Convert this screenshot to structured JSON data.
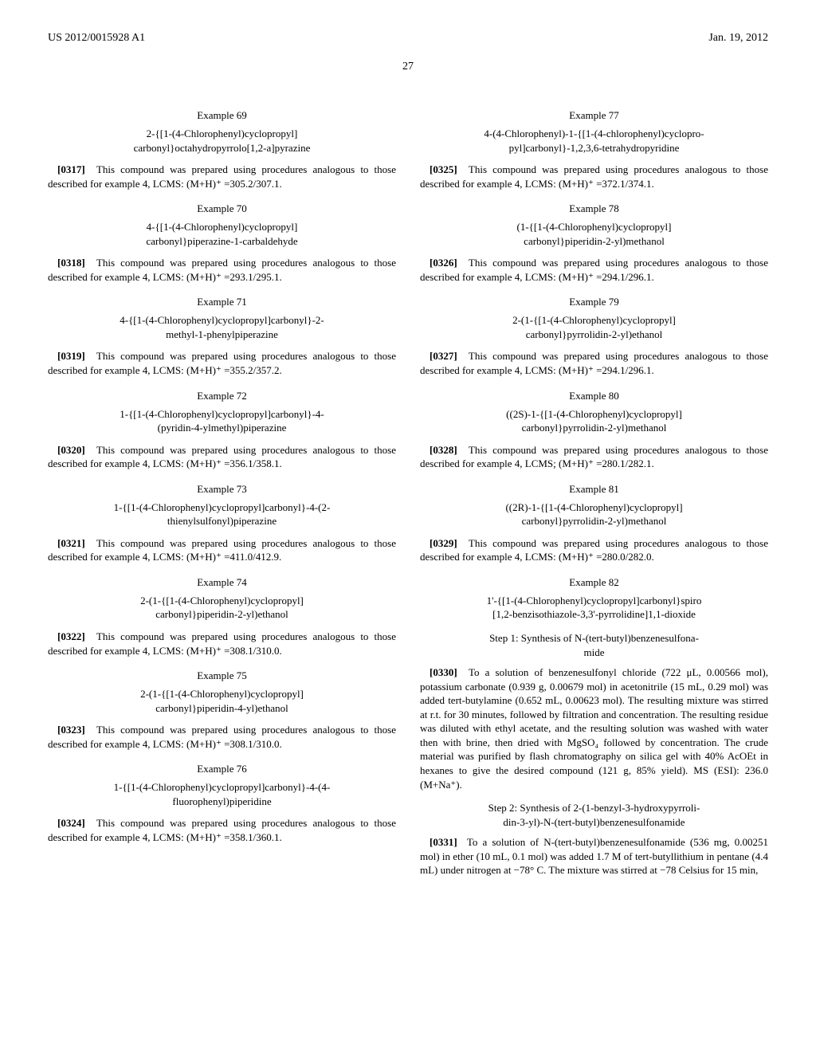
{
  "header": {
    "left": "US 2012/0015928 A1",
    "right": "Jan. 19, 2012"
  },
  "page_number": "27",
  "left_column": [
    {
      "heading": "Example 69",
      "title": "2-{[1-(4-Chlorophenyl)cyclopropyl]\ncarbonyl}octahydropyrrolo[1,2-a]pyrazine",
      "para_num": "[0317]",
      "para": "This compound was prepared using procedures analogous to those described for example 4, LCMS: (M+H)⁺ =305.2/307.1."
    },
    {
      "heading": "Example 70",
      "title": "4-{[1-(4-Chlorophenyl)cyclopropyl]\ncarbonyl}piperazine-1-carbaldehyde",
      "para_num": "[0318]",
      "para": "This compound was prepared using procedures analogous to those described for example 4, LCMS: (M+H)⁺ =293.1/295.1."
    },
    {
      "heading": "Example 71",
      "title": "4-{[1-(4-Chlorophenyl)cyclopropyl]carbonyl}-2-\nmethyl-1-phenylpiperazine",
      "para_num": "[0319]",
      "para": "This compound was prepared using procedures analogous to those described for example 4, LCMS: (M+H)⁺ =355.2/357.2."
    },
    {
      "heading": "Example 72",
      "title": "1-{[1-(4-Chlorophenyl)cyclopropyl]carbonyl}-4-\n(pyridin-4-ylmethyl)piperazine",
      "para_num": "[0320]",
      "para": "This compound was prepared using procedures analogous to those described for example 4, LCMS: (M+H)⁺ =356.1/358.1."
    },
    {
      "heading": "Example 73",
      "title": "1-{[1-(4-Chlorophenyl)cyclopropyl]carbonyl}-4-(2-\nthienylsulfonyl)piperazine",
      "para_num": "[0321]",
      "para": "This compound was prepared using procedures analogous to those described for example 4, LCMS: (M+H)⁺ =411.0/412.9."
    },
    {
      "heading": "Example 74",
      "title": "2-(1-{[1-(4-Chlorophenyl)cyclopropyl]\ncarbonyl}piperidin-2-yl)ethanol",
      "para_num": "[0322]",
      "para": "This compound was prepared using procedures analogous to those described for example 4, LCMS: (M+H)⁺ =308.1/310.0."
    },
    {
      "heading": "Example 75",
      "title": "2-(1-{[1-(4-Chlorophenyl)cyclopropyl]\ncarbonyl}piperidin-4-yl)ethanol",
      "para_num": "[0323]",
      "para": "This compound was prepared using procedures analogous to those described for example 4, LCMS: (M+H)⁺ =308.1/310.0."
    },
    {
      "heading": "Example 76",
      "title": "1-{[1-(4-Chlorophenyl)cyclopropyl]carbonyl}-4-(4-\nfluorophenyl)piperidine",
      "para_num": "[0324]",
      "para": "This compound was prepared using procedures analogous to those described for example 4, LCMS: (M+H)⁺ =358.1/360.1."
    }
  ],
  "right_column": [
    {
      "heading": "Example 77",
      "title": "4-(4-Chlorophenyl)-1-{[1-(4-chlorophenyl)cyclopro-\npyl]carbonyl}-1,2,3,6-tetrahydropyridine",
      "para_num": "[0325]",
      "para": "This compound was prepared using procedures analogous to those described for example 4, LCMS: (M+H)⁺ =372.1/374.1."
    },
    {
      "heading": "Example 78",
      "title": "(1-{[1-(4-Chlorophenyl)cyclopropyl]\ncarbonyl}piperidin-2-yl)methanol",
      "para_num": "[0326]",
      "para": "This compound was prepared using procedures analogous to those described for example 4, LCMS: (M+H)⁺ =294.1/296.1."
    },
    {
      "heading": "Example 79",
      "title": "2-(1-{[1-(4-Chlorophenyl)cyclopropyl]\ncarbonyl}pyrrolidin-2-yl)ethanol",
      "para_num": "[0327]",
      "para": "This compound was prepared using procedures analogous to those described for example 4, LCMS: (M+H)⁺ =294.1/296.1."
    },
    {
      "heading": "Example 80",
      "title": "((2S)-1-{[1-(4-Chlorophenyl)cyclopropyl]\ncarbonyl}pyrrolidin-2-yl)methanol",
      "para_num": "[0328]",
      "para": "This compound was prepared using procedures analogous to those described for example 4, LCMS; (M+H)⁺ =280.1/282.1."
    },
    {
      "heading": "Example 81",
      "title": "((2R)-1-{[1-(4-Chlorophenyl)cyclopropyl]\ncarbonyl}pyrrolidin-2-yl)methanol",
      "para_num": "[0329]",
      "para": "This compound was prepared using procedures analogous to those described for example 4, LCMS: (M+H)⁺ =280.0/282.0."
    },
    {
      "heading": "Example 82",
      "title": "1'-{[1-(4-Chlorophenyl)cyclopropyl]carbonyl}spiro\n[1,2-benzisothiazole-3,3'-pyrrolidine]1,1-dioxide",
      "steps": [
        {
          "step_heading": "Step 1: Synthesis of N-(tert-butyl)benzenesulfona-\nmide",
          "para_num": "[0330]",
          "para": "To a solution of benzenesulfonyl chloride (722 μL, 0.00566 mol), potassium carbonate (0.939 g, 0.00679 mol) in acetonitrile (15 mL, 0.29 mol) was added tert-butylamine (0.652 mL, 0.00623 mol). The resulting mixture was stirred at r.t. for 30 minutes, followed by filtration and concentration. The resulting residue was diluted with ethyl acetate, and the resulting solution was washed with water then with brine, then dried with MgSO₄ followed by concentration. The crude material was purified by flash chromatography on silica gel with 40% AcOEt in hexanes to give the desired compound (121 g, 85% yield). MS (ESI): 236.0 (M+Na⁺)."
        },
        {
          "step_heading": "Step 2: Synthesis of 2-(1-benzyl-3-hydroxypyrroli-\ndin-3-yl)-N-(tert-butyl)benzenesulfonamide",
          "para_num": "[0331]",
          "para": "To a solution of N-(tert-butyl)benzenesulfonamide (536 mg, 0.00251 mol) in ether (10 mL, 0.1 mol) was added 1.7 M of tert-butyllithium in pentane (4.4 mL) under nitrogen at −78° C. The mixture was stirred at −78 Celsius for 15 min,"
        }
      ]
    }
  ]
}
